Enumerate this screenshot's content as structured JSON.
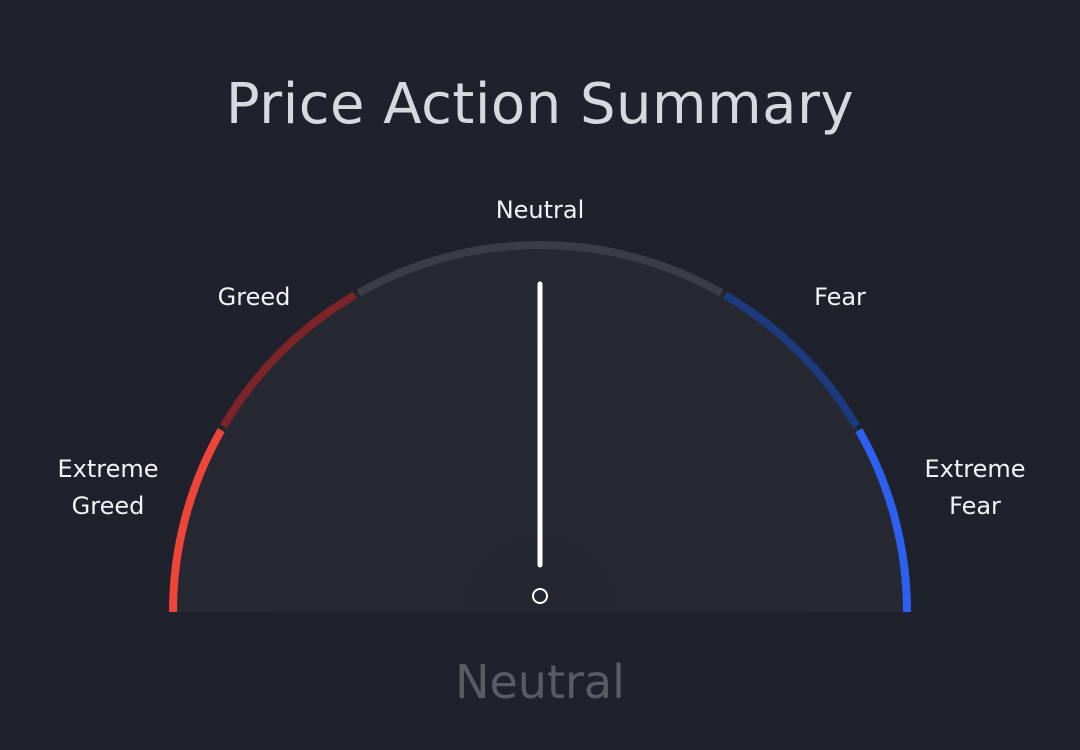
{
  "chart_data": {
    "type": "gauge",
    "title": "Price Action Summary",
    "value_label": "Neutral",
    "needle_value": 0,
    "range": [
      -100,
      100
    ],
    "zones": [
      {
        "id": "extreme-greed",
        "label": "Extreme\nGreed",
        "from": -100,
        "to": -66.6,
        "color": "#ef4438"
      },
      {
        "id": "greed",
        "label": "Greed",
        "from": -66.6,
        "to": -33.3,
        "color": "#7d2429"
      },
      {
        "id": "neutral",
        "label": "Neutral",
        "from": -33.3,
        "to": 33.3,
        "color": "#3a3d48"
      },
      {
        "id": "fear",
        "label": "Fear",
        "from": 33.3,
        "to": 66.6,
        "color": "#1c3a7d"
      },
      {
        "id": "extreme-fear",
        "label": "Extreme\nFear",
        "from": 66.6,
        "to": 100,
        "color": "#2d5ff0"
      }
    ]
  }
}
